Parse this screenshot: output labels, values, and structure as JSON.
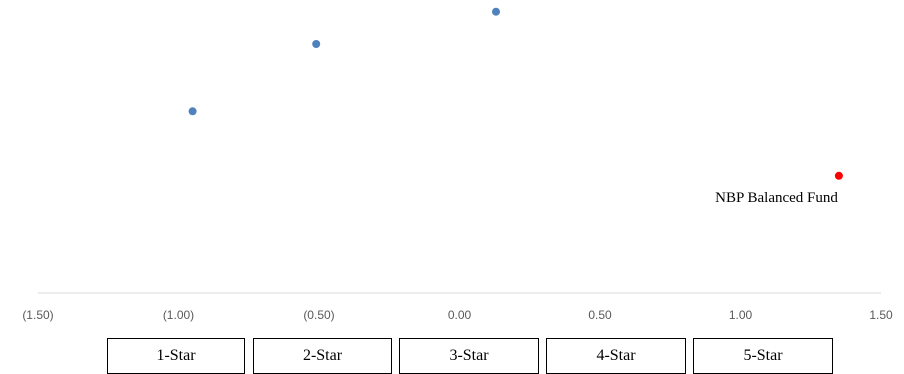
{
  "chart_data": {
    "type": "scatter",
    "xlim": [
      -1.5,
      1.5
    ],
    "x_ticks": [
      "(1.50)",
      "(1.00)",
      "(0.50)",
      "0.00",
      "0.50",
      "1.00",
      "1.50"
    ],
    "x_tick_values": [
      -1.5,
      -1.0,
      -0.5,
      0.0,
      0.5,
      1.0,
      1.5
    ],
    "ylim": [
      0,
      1
    ],
    "grid": false,
    "series": [
      {
        "color": "#4f81bd",
        "points": [
          {
            "x": -0.95,
            "y": 0.62
          },
          {
            "x": -0.51,
            "y": 0.85
          },
          {
            "x": 0.13,
            "y": 0.96
          }
        ]
      },
      {
        "color": "#ff0000",
        "points": [
          {
            "x": 1.35,
            "y": 0.4
          }
        ]
      }
    ],
    "annotations": [
      {
        "text": "NBP Balanced Fund",
        "x": 1.35,
        "y": 0.4
      }
    ]
  },
  "rating_boxes": [
    "1-Star",
    "2-Star",
    "3-Star",
    "4-Star",
    "5-Star"
  ]
}
